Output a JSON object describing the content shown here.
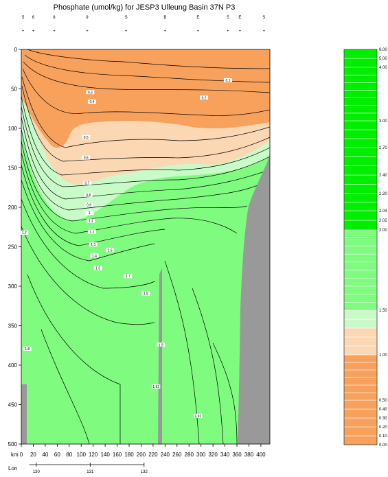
{
  "chart_data": {
    "type": "contour-section",
    "title": "Phosphate (umol/kg) for JESP3 Ulleung Basin 37N P3",
    "x_axis": {
      "name": "km",
      "range": [
        0,
        415
      ],
      "ticks": [
        0,
        20,
        40,
        60,
        80,
        100,
        120,
        140,
        160,
        180,
        200,
        220,
        240,
        260,
        280,
        300,
        320,
        340,
        360,
        380,
        400
      ]
    },
    "lon_axis": {
      "name": "Lon",
      "ticks": [
        {
          "label": "130",
          "km": 25
        },
        {
          "label": "131",
          "km": 115
        },
        {
          "label": "132",
          "km": 205
        }
      ]
    },
    "y_axis": {
      "range": [
        0,
        500
      ],
      "reversed": true,
      "ticks": [
        0,
        50,
        100,
        150,
        200,
        250,
        300,
        350,
        400,
        450,
        500
      ]
    },
    "stations": [
      {
        "km": 3,
        "label": "5"
      },
      {
        "km": 20,
        "label": "6"
      },
      {
        "km": 55,
        "label": "8"
      },
      {
        "km": 110,
        "label": "9"
      },
      {
        "km": 175,
        "label": "S"
      },
      {
        "km": 240,
        "label": "B"
      },
      {
        "km": 295,
        "label": "E"
      },
      {
        "km": 345,
        "label": "5"
      },
      {
        "km": 365,
        "label": "E"
      },
      {
        "km": 405,
        "label": "S"
      }
    ],
    "contour_labels": [
      {
        "text": "0.1",
        "km": 345,
        "depth": 40
      },
      {
        "text": "0.2",
        "km": 305,
        "depth": 62
      },
      {
        "text": "0.3",
        "km": 115,
        "depth": 55
      },
      {
        "text": "0.4",
        "km": 118,
        "depth": 67
      },
      {
        "text": "0.5",
        "km": 108,
        "depth": 112
      },
      {
        "text": "0.6",
        "km": 108,
        "depth": 138
      },
      {
        "text": "0.7",
        "km": 110,
        "depth": 170
      },
      {
        "text": "0.8",
        "km": 112,
        "depth": 185
      },
      {
        "text": "0.9",
        "km": 113,
        "depth": 198
      },
      {
        "text": "1",
        "km": 114,
        "depth": 208
      },
      {
        "text": "1.1",
        "km": 116,
        "depth": 218
      },
      {
        "text": "1.2",
        "km": 118,
        "depth": 232
      },
      {
        "text": "1.3",
        "km": 120,
        "depth": 248
      },
      {
        "text": "1.4",
        "km": 122,
        "depth": 262
      },
      {
        "text": "1.5",
        "km": 128,
        "depth": 278
      },
      {
        "text": "1.7",
        "km": 5,
        "depth": 233
      },
      {
        "text": "1.6",
        "km": 148,
        "depth": 255
      },
      {
        "text": "1.7",
        "km": 178,
        "depth": 288
      },
      {
        "text": "1.8",
        "km": 208,
        "depth": 310
      },
      {
        "text": "1.8",
        "km": 10,
        "depth": 380
      },
      {
        "text": "1.9",
        "km": 233,
        "depth": 375
      },
      {
        "text": "1.82",
        "km": 225,
        "depth": 428
      },
      {
        "text": "1.91",
        "km": 295,
        "depth": 465
      }
    ],
    "colorbar": {
      "labels": [
        "0.00",
        "0.10",
        "0.20",
        "0.30",
        "0.40",
        "0.50",
        "1.00",
        "1.50",
        "2.00",
        "2.02",
        "2.04",
        "2.20",
        "2.40",
        "2.70",
        "3.00",
        "4.00",
        "5.00",
        "6.00"
      ],
      "colors": {
        "low": "#f7a15c",
        "mid": "#fbd7b3",
        "light_green": "#c9fbc9",
        "green": "#7ffb7f",
        "high": "#00ee00"
      }
    },
    "bathymetry_color": "#999999"
  }
}
